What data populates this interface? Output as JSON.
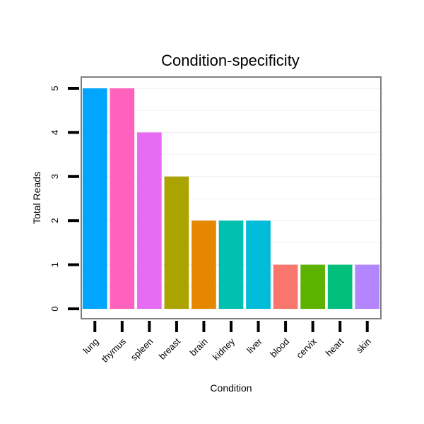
{
  "chart_data": {
    "type": "bar",
    "title": "Condition-specificity",
    "xlabel": "Condition",
    "ylabel": "Total Reads",
    "ylim": [
      0,
      5
    ],
    "yticks": [
      0,
      1,
      2,
      3,
      4,
      5
    ],
    "grid": true,
    "legend": "none",
    "categories": [
      "lung",
      "thymus",
      "spleen",
      "breast",
      "brain",
      "kidney",
      "liver",
      "blood",
      "cervix",
      "heart",
      "skin"
    ],
    "values": [
      5,
      5,
      4,
      3,
      2,
      2,
      2,
      1,
      1,
      1,
      1
    ],
    "colors": [
      "#00A5FF",
      "#FF62BC",
      "#E76BF3",
      "#ABA300",
      "#E58700",
      "#00C0AF",
      "#00BCD8",
      "#F8766D",
      "#5BB300",
      "#00BF7D",
      "#B385FF"
    ]
  }
}
